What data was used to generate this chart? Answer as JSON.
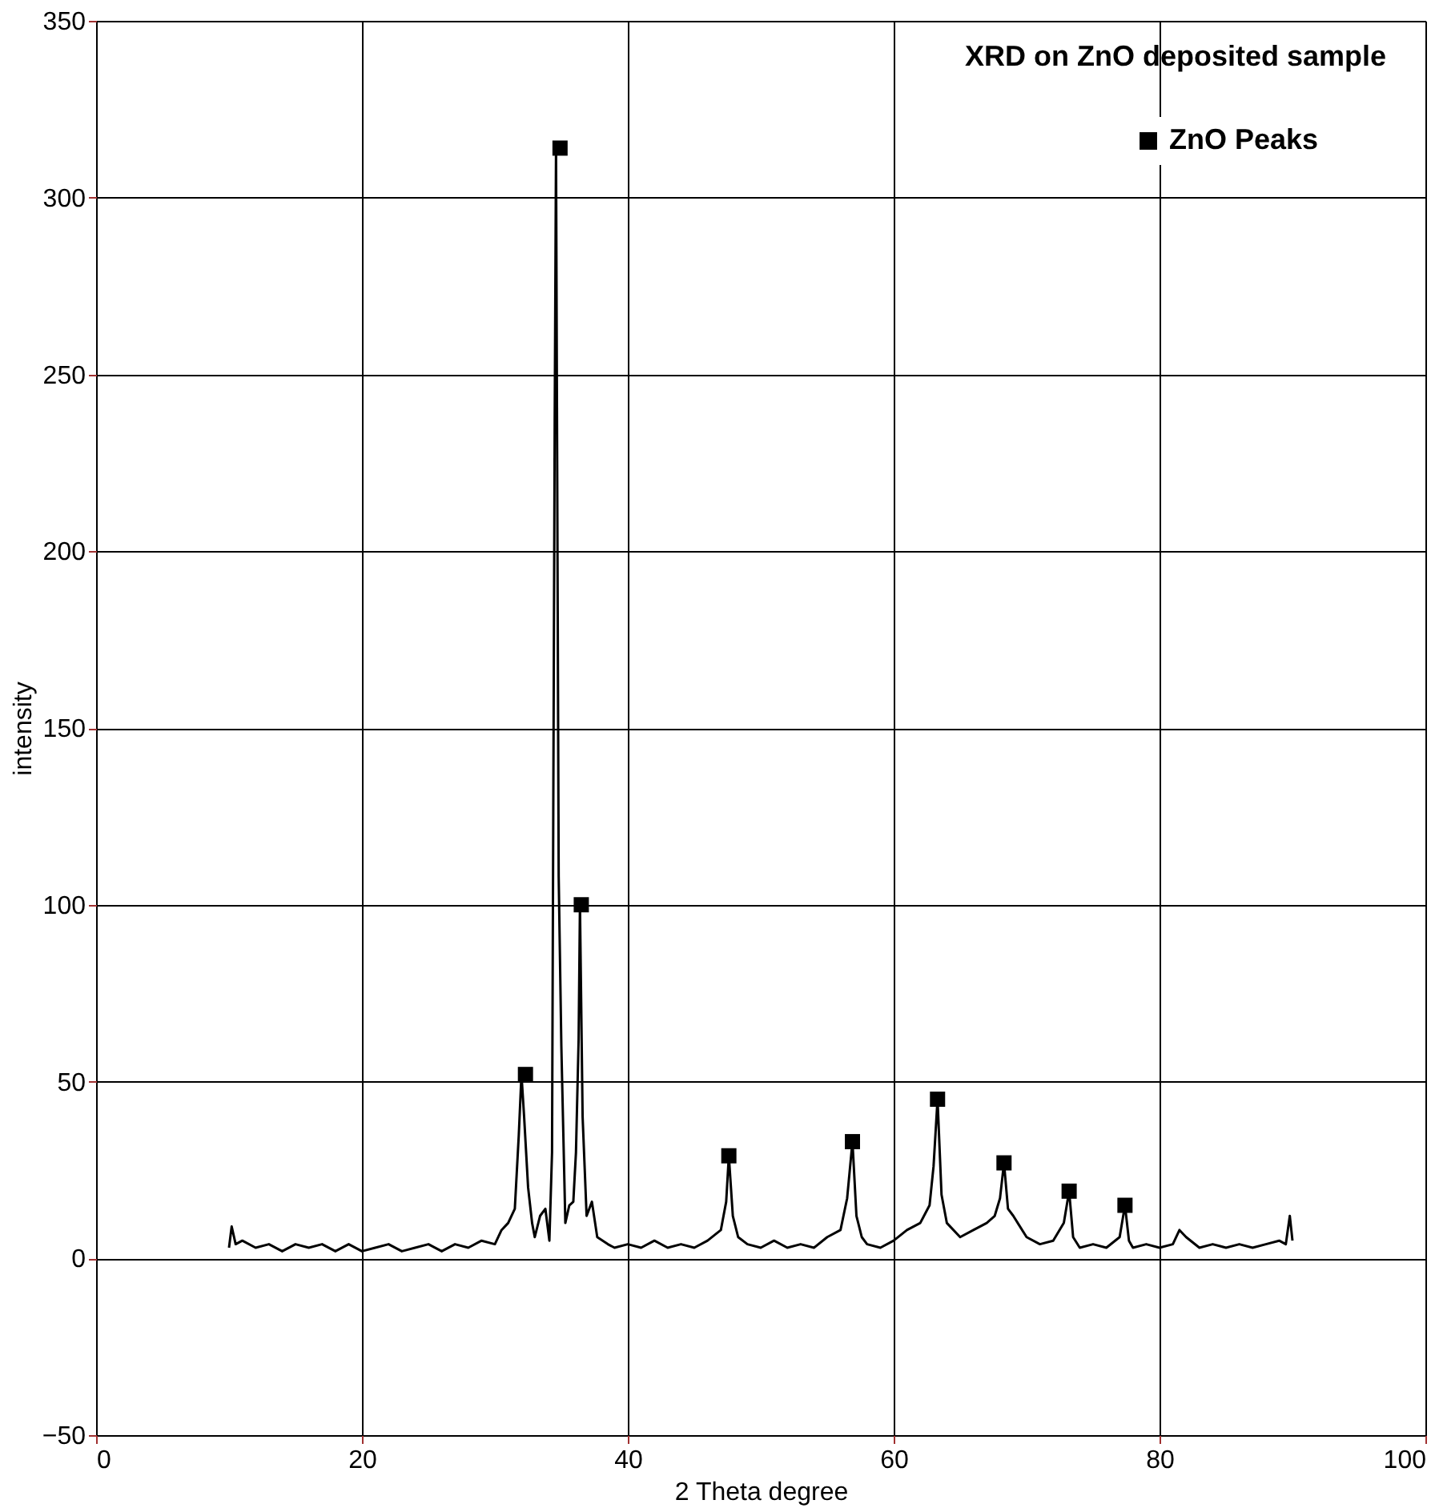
{
  "chart_data": {
    "type": "line",
    "title": "XRD on ZnO deposited sample",
    "xlabel": "2 Theta degree",
    "ylabel": "intensity",
    "xlim": [
      0,
      100
    ],
    "xticks": [
      0,
      20,
      40,
      60,
      80,
      100
    ],
    "ylim": [
      -50,
      350
    ],
    "yticks": [
      -50,
      0,
      50,
      100,
      150,
      200,
      250,
      300,
      350
    ],
    "grid": true,
    "legend": "top right",
    "series": [
      {
        "color": "#000000",
        "marker": "none",
        "x": [
          10,
          10.2,
          10.5,
          11,
          12,
          13,
          14,
          15,
          16,
          17,
          18,
          19,
          20,
          21,
          22,
          23,
          24,
          25,
          26,
          27,
          28,
          29,
          30,
          30.5,
          31,
          31.5,
          31.8,
          32.0,
          32.2,
          32.5,
          32.8,
          33,
          33.4,
          33.8,
          34.1,
          34.3,
          34.5,
          34.6,
          34.8,
          35.0,
          35.3,
          35.6,
          35.9,
          36.1,
          36.3,
          36.4,
          36.6,
          36.9,
          37.3,
          37.7,
          38.5,
          39,
          40,
          41,
          42,
          43,
          44,
          45,
          46,
          47,
          47.4,
          47.6,
          47.9,
          48.3,
          49,
          50,
          51,
          52,
          53,
          54,
          55,
          56,
          56.5,
          56.9,
          57.2,
          57.6,
          58,
          59,
          60,
          61,
          62,
          62.7,
          63.0,
          63.3,
          63.6,
          64,
          65,
          66,
          67,
          67.6,
          68.0,
          68.3,
          68.6,
          69,
          70,
          71,
          72,
          72.8,
          73.2,
          73.5,
          74,
          75,
          76,
          77,
          77.4,
          77.7,
          78,
          79,
          80,
          81,
          81.5,
          82,
          83,
          84,
          85,
          86,
          87,
          88,
          89,
          89.5,
          89.8,
          90
        ],
        "values": [
          3,
          9,
          4,
          5,
          3,
          4,
          2,
          4,
          3,
          4,
          2,
          4,
          2,
          3,
          4,
          2,
          3,
          4,
          2,
          4,
          3,
          5,
          4,
          8,
          10,
          14,
          35,
          52,
          40,
          20,
          10,
          6,
          12,
          14,
          5,
          30,
          237,
          314,
          108,
          60,
          10,
          15,
          16,
          30,
          62,
          100,
          40,
          12,
          16,
          6,
          4,
          3,
          4,
          3,
          5,
          3,
          4,
          3,
          5,
          8,
          16,
          29,
          12,
          6,
          4,
          3,
          5,
          3,
          4,
          3,
          6,
          8,
          17,
          33,
          12,
          6,
          4,
          3,
          5,
          8,
          10,
          15,
          26,
          45,
          18,
          10,
          6,
          8,
          10,
          12,
          17,
          27,
          14,
          12,
          6,
          4,
          5,
          10,
          19,
          6,
          3,
          4,
          3,
          6,
          15,
          5,
          3,
          4,
          3,
          4,
          8,
          6,
          3,
          4,
          3,
          4,
          3,
          4,
          5,
          4,
          12,
          5
        ]
      },
      {
        "type": "scatter",
        "name": "ZnO Peaks",
        "color": "#000000",
        "marker": "square",
        "x": [
          32.3,
          34.9,
          36.5,
          47.6,
          56.9,
          63.3,
          68.3,
          73.2,
          77.4
        ],
        "values": [
          52,
          314,
          100,
          29,
          33,
          45,
          27,
          19,
          15
        ]
      }
    ]
  }
}
